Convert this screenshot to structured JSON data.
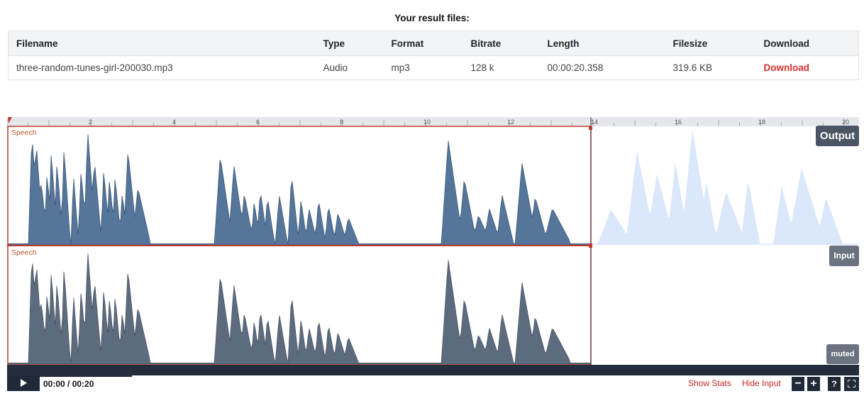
{
  "heading": "Your result files:",
  "table": {
    "headers": [
      "Filename",
      "Type",
      "Format",
      "Bitrate",
      "Length",
      "Filesize",
      "Download"
    ],
    "rows": [
      [
        "three-random-tunes-girl-200030.mp3",
        "Audio",
        "mp3",
        "128 k",
        "00:00:20.358",
        "319.6 KB",
        "Download"
      ]
    ]
  },
  "timeline": {
    "ticks": [
      "2",
      "4",
      "6",
      "8",
      "10",
      "12",
      "14",
      "16",
      "18",
      "20"
    ]
  },
  "tracks": {
    "output_label": "Speech",
    "input_label": "Speech",
    "output_badge": "Output",
    "input_badge": "Input",
    "muted_badge": "muted"
  },
  "player": {
    "play_icon": "play-icon",
    "time": "00:00 / 00:20",
    "show_stats": "Show Stats",
    "hide_input": "Hide Input",
    "zoom_out": "−",
    "zoom_in": "+",
    "help": "?",
    "fullscreen_icon": "fullscreen-icon"
  },
  "colors": {
    "output_wave": "#55759a",
    "output_wave_faded": "#dbe8fb",
    "input_wave": "#5d6b7e",
    "selection": "#c0392b",
    "accent_link": "#d32f2f"
  }
}
